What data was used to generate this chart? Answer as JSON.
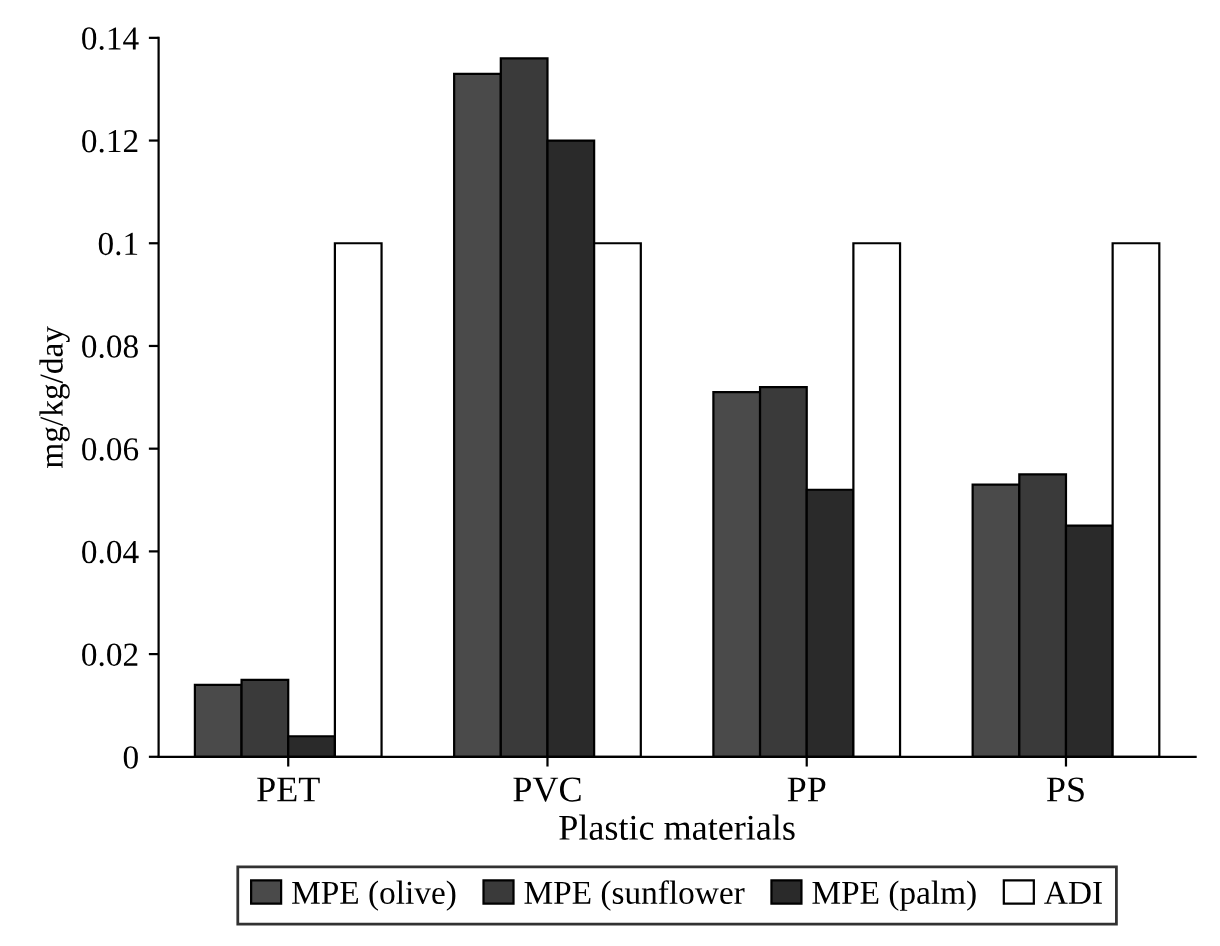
{
  "chart_data": {
    "type": "bar",
    "xlabel": "Plastic materials",
    "ylabel": "mg/kg/day",
    "categories": [
      "PET",
      "PVC",
      "PP",
      "PS"
    ],
    "series": [
      {
        "name": "MPE (olive)",
        "color": "#4a4a4a",
        "values": [
          0.014,
          0.133,
          0.071,
          0.053
        ]
      },
      {
        "name": "MPE (sunflower",
        "color": "#3a3a3a",
        "values": [
          0.015,
          0.136,
          0.072,
          0.055
        ]
      },
      {
        "name": "MPE (palm)",
        "color": "#2a2a2a",
        "values": [
          0.004,
          0.12,
          0.052,
          0.045
        ]
      },
      {
        "name": "ADI",
        "color": "#ffffff",
        "values": [
          0.1,
          0.1,
          0.1,
          0.1
        ]
      }
    ],
    "ylim": [
      0,
      0.14
    ],
    "yticks": [
      0,
      0.02,
      0.04,
      0.06,
      0.08,
      0.1,
      0.12,
      0.14
    ],
    "grid": false,
    "legend": "bottom"
  }
}
